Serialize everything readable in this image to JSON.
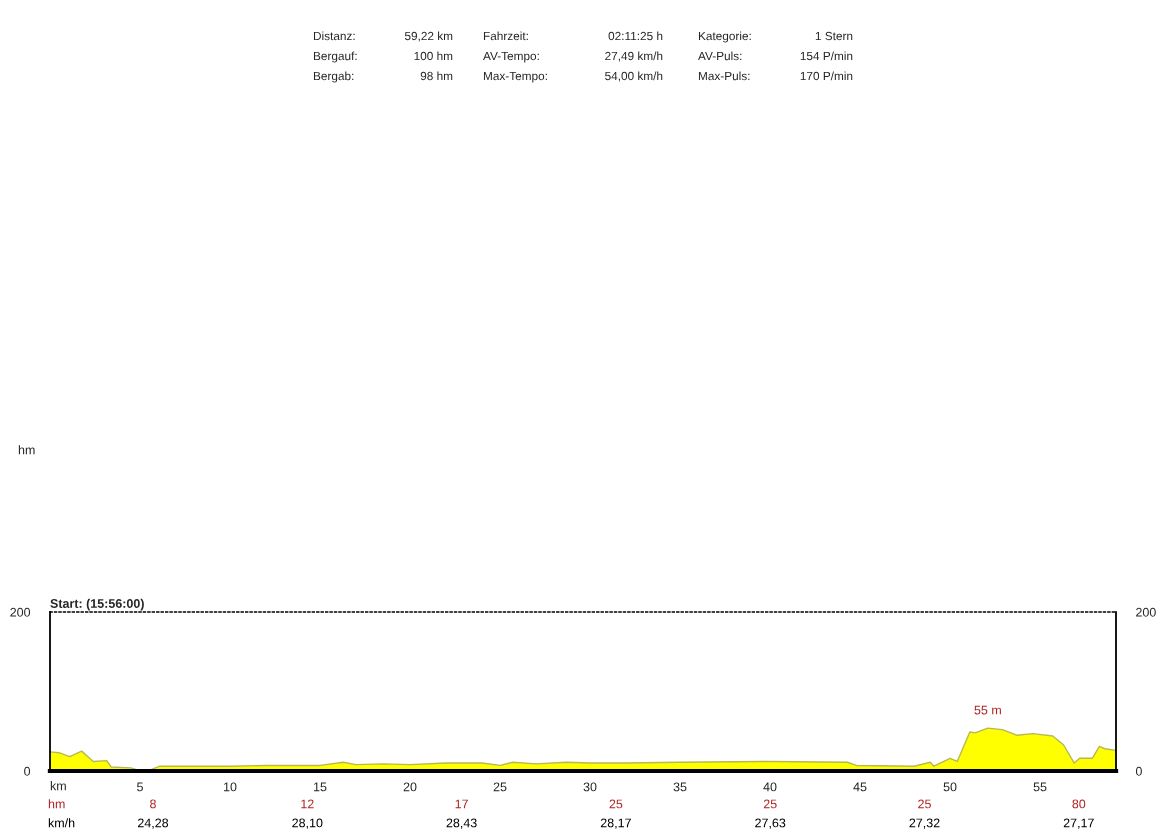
{
  "chart_data": {
    "type": "area",
    "xlabel": "km",
    "x": [
      0,
      0.5,
      1.1,
      1.76,
      2.4,
      3.15,
      3.4,
      4.5,
      4.9,
      5.55,
      6.1,
      8,
      10,
      12,
      15,
      16.3,
      17,
      18.5,
      20,
      22,
      24,
      25,
      25.7,
      27,
      28.7,
      30,
      32,
      35,
      40,
      44.3,
      44.8,
      48,
      48.9,
      49.1,
      50,
      50.4,
      51.1,
      51.4,
      52.1,
      52.9,
      53.7,
      54.6,
      55.7,
      56.3,
      56.9,
      57.2,
      57.9,
      58.3,
      58.6,
      59.22
    ],
    "series": [
      {
        "color": "#ffff00",
        "values": [
          24,
          23,
          18,
          25,
          12,
          13,
          5,
          4,
          1,
          1,
          6,
          6,
          6,
          7,
          7,
          11,
          8,
          9,
          8,
          10,
          10,
          7,
          11,
          9,
          11,
          10,
          10,
          11,
          12,
          11,
          7,
          6,
          11,
          6,
          16,
          12,
          49,
          48,
          54,
          52,
          45,
          47,
          44,
          33,
          10,
          16,
          16,
          31,
          28,
          26
        ]
      }
    ],
    "xlim": [
      0,
      59.22
    ],
    "xticks": [
      5,
      10,
      15,
      20,
      25,
      30,
      35,
      40,
      45,
      50,
      55
    ],
    "ylim": [
      0,
      200
    ],
    "yticks": [
      0,
      200
    ],
    "y2lim": [
      0,
      200
    ],
    "y2ticks": [
      0,
      200
    ],
    "grid": false,
    "legend": false,
    "annotations": [
      "Distanz:",
      "59,22 km",
      "Fahrzeit:",
      "02:11:25 h",
      "Kategorie:",
      "1 Stern",
      "Bergauf:",
      "100 hm",
      "AV-Tempo:",
      "27,49 km/h",
      "AV-Puls:",
      "154 P/min",
      "Bergab:",
      "98 hm",
      "Max-Tempo:",
      "54,00 km/h",
      "Max-Puls:",
      "170 P/min",
      "Start: (15:56:00)",
      {
        "text": "55 m",
        "x": 52.1,
        "y": 54
      },
      "hm",
      "8",
      "12",
      "17",
      "25",
      "25",
      "25",
      "80",
      "km/h",
      "24,28",
      "28,10",
      "28,43",
      "28,17",
      "27,63",
      "27,32",
      "27,17",
      "hm"
    ]
  }
}
